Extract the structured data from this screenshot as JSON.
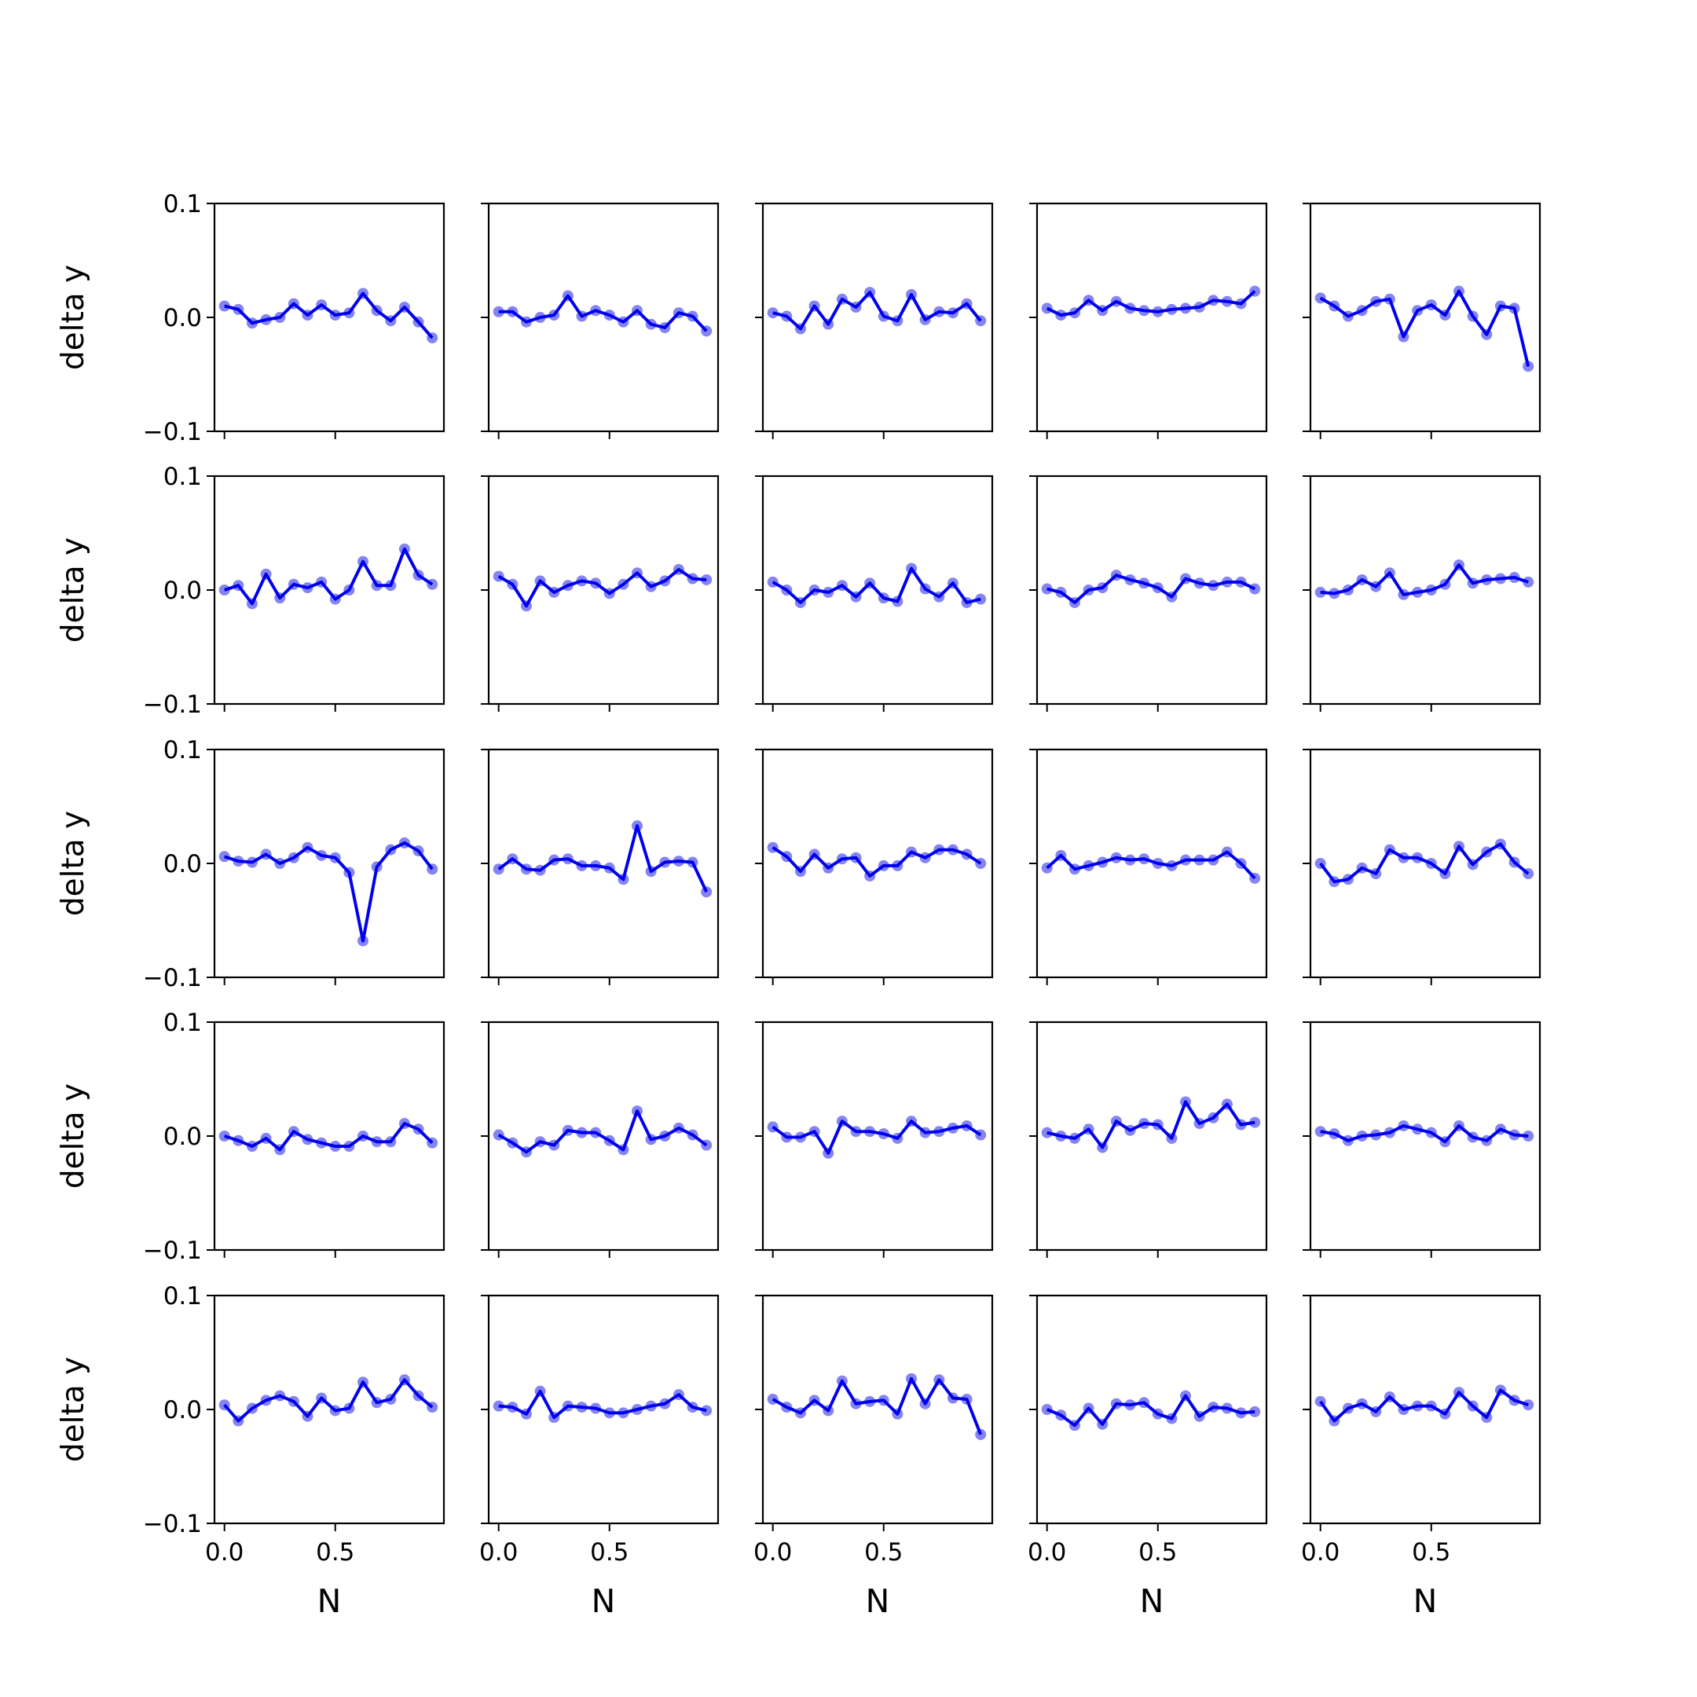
{
  "figure": {
    "rows": 5,
    "cols": 5,
    "ylabel": "delta y",
    "xlabel": "N",
    "ylim": [
      -0.1,
      0.1
    ],
    "xlim": [
      -0.045,
      0.99
    ],
    "yticks": [
      -0.1,
      0.0,
      0.1
    ],
    "ytick_labels": [
      "−0.1",
      "0.0",
      "0.1"
    ],
    "xticks": [
      0.0,
      0.5
    ],
    "xtick_labels": [
      "0.0",
      "0.5"
    ],
    "line_color": "#0000ee",
    "marker_color": "#6f6ff0"
  },
  "chart_data": [
    {
      "type": "line",
      "x": [
        0.0,
        0.0625,
        0.125,
        0.1875,
        0.25,
        0.3125,
        0.375,
        0.4375,
        0.5,
        0.5625,
        0.625,
        0.6875,
        0.75,
        0.8125,
        0.875,
        0.9375
      ],
      "series": [
        {
          "values": [
            0.01,
            0.007,
            -0.005,
            -0.002,
            0.0,
            0.012,
            0.002,
            0.011,
            0.002,
            0.004,
            0.021,
            0.006,
            -0.003,
            0.009,
            -0.004,
            -0.018
          ]
        }
      ]
    },
    {
      "type": "line",
      "x": [
        0.0,
        0.0625,
        0.125,
        0.1875,
        0.25,
        0.3125,
        0.375,
        0.4375,
        0.5,
        0.5625,
        0.625,
        0.6875,
        0.75,
        0.8125,
        0.875,
        0.9375
      ],
      "series": [
        {
          "values": [
            0.005,
            0.005,
            -0.004,
            0.0,
            0.002,
            0.019,
            0.001,
            0.006,
            0.002,
            -0.004,
            0.006,
            -0.006,
            -0.009,
            0.004,
            0.001,
            -0.012
          ]
        }
      ]
    },
    {
      "type": "line",
      "x": [
        0.0,
        0.0625,
        0.125,
        0.1875,
        0.25,
        0.3125,
        0.375,
        0.4375,
        0.5,
        0.5625,
        0.625,
        0.6875,
        0.75,
        0.8125,
        0.875,
        0.9375
      ],
      "series": [
        {
          "values": [
            0.004,
            0.001,
            -0.01,
            0.01,
            -0.006,
            0.016,
            0.009,
            0.022,
            0.001,
            -0.003,
            0.02,
            -0.002,
            0.005,
            0.004,
            0.012,
            -0.003
          ]
        }
      ]
    },
    {
      "type": "line",
      "x": [
        0.0,
        0.0625,
        0.125,
        0.1875,
        0.25,
        0.3125,
        0.375,
        0.4375,
        0.5,
        0.5625,
        0.625,
        0.6875,
        0.75,
        0.8125,
        0.875,
        0.9375
      ],
      "series": [
        {
          "values": [
            0.008,
            0.002,
            0.004,
            0.015,
            0.006,
            0.014,
            0.008,
            0.006,
            0.005,
            0.007,
            0.008,
            0.009,
            0.015,
            0.014,
            0.012,
            0.023
          ]
        }
      ]
    },
    {
      "type": "line",
      "x": [
        0.0,
        0.0625,
        0.125,
        0.1875,
        0.25,
        0.3125,
        0.375,
        0.4375,
        0.5,
        0.5625,
        0.625,
        0.6875,
        0.75,
        0.8125,
        0.875,
        0.9375
      ],
      "series": [
        {
          "values": [
            0.017,
            0.01,
            0.001,
            0.006,
            0.014,
            0.016,
            -0.017,
            0.006,
            0.011,
            0.002,
            0.023,
            0.001,
            -0.015,
            0.01,
            0.008,
            -0.043
          ]
        }
      ]
    },
    {
      "type": "line",
      "x": [
        0.0,
        0.0625,
        0.125,
        0.1875,
        0.25,
        0.3125,
        0.375,
        0.4375,
        0.5,
        0.5625,
        0.625,
        0.6875,
        0.75,
        0.8125,
        0.875,
        0.9375
      ],
      "series": [
        {
          "values": [
            0.0,
            0.004,
            -0.012,
            0.014,
            -0.007,
            0.005,
            0.002,
            0.007,
            -0.008,
            0.0,
            0.025,
            0.004,
            0.004,
            0.036,
            0.013,
            0.005
          ]
        }
      ]
    },
    {
      "type": "line",
      "x": [
        0.0,
        0.0625,
        0.125,
        0.1875,
        0.25,
        0.3125,
        0.375,
        0.4375,
        0.5,
        0.5625,
        0.625,
        0.6875,
        0.75,
        0.8125,
        0.875,
        0.9375
      ],
      "series": [
        {
          "values": [
            0.012,
            0.005,
            -0.014,
            0.008,
            -0.002,
            0.004,
            0.008,
            0.006,
            -0.003,
            0.005,
            0.015,
            0.003,
            0.008,
            0.018,
            0.01,
            0.009
          ]
        }
      ]
    },
    {
      "type": "line",
      "x": [
        0.0,
        0.0625,
        0.125,
        0.1875,
        0.25,
        0.3125,
        0.375,
        0.4375,
        0.5,
        0.5625,
        0.625,
        0.6875,
        0.75,
        0.8125,
        0.875,
        0.9375
      ],
      "series": [
        {
          "values": [
            0.007,
            0.0,
            -0.011,
            0.0,
            -0.002,
            0.004,
            -0.006,
            0.006,
            -0.007,
            -0.01,
            0.019,
            0.001,
            -0.006,
            0.006,
            -0.011,
            -0.008
          ]
        }
      ]
    },
    {
      "type": "line",
      "x": [
        0.0,
        0.0625,
        0.125,
        0.1875,
        0.25,
        0.3125,
        0.375,
        0.4375,
        0.5,
        0.5625,
        0.625,
        0.6875,
        0.75,
        0.8125,
        0.875,
        0.9375
      ],
      "series": [
        {
          "values": [
            0.001,
            -0.002,
            -0.011,
            0.0,
            0.002,
            0.013,
            0.009,
            0.006,
            0.002,
            -0.006,
            0.01,
            0.006,
            0.004,
            0.007,
            0.007,
            0.001
          ]
        }
      ]
    },
    {
      "type": "line",
      "x": [
        0.0,
        0.0625,
        0.125,
        0.1875,
        0.25,
        0.3125,
        0.375,
        0.4375,
        0.5,
        0.5625,
        0.625,
        0.6875,
        0.75,
        0.8125,
        0.875,
        0.9375
      ],
      "series": [
        {
          "values": [
            -0.002,
            -0.003,
            0.0,
            0.009,
            0.003,
            0.015,
            -0.004,
            -0.002,
            0.0,
            0.005,
            0.022,
            0.006,
            0.009,
            0.01,
            0.011,
            0.007
          ]
        }
      ]
    },
    {
      "type": "line",
      "x": [
        0.0,
        0.0625,
        0.125,
        0.1875,
        0.25,
        0.3125,
        0.375,
        0.4375,
        0.5,
        0.5625,
        0.625,
        0.6875,
        0.75,
        0.8125,
        0.875,
        0.9375
      ],
      "series": [
        {
          "values": [
            0.006,
            0.002,
            0.001,
            0.008,
            0.0,
            0.005,
            0.014,
            0.007,
            0.005,
            -0.008,
            -0.068,
            -0.003,
            0.012,
            0.018,
            0.011,
            -0.005
          ]
        }
      ]
    },
    {
      "type": "line",
      "x": [
        0.0,
        0.0625,
        0.125,
        0.1875,
        0.25,
        0.3125,
        0.375,
        0.4375,
        0.5,
        0.5625,
        0.625,
        0.6875,
        0.75,
        0.8125,
        0.875,
        0.9375
      ],
      "series": [
        {
          "values": [
            -0.005,
            0.004,
            -0.005,
            -0.006,
            0.003,
            0.004,
            -0.002,
            -0.002,
            -0.004,
            -0.014,
            0.033,
            -0.007,
            0.001,
            0.002,
            0.001,
            -0.025
          ]
        }
      ]
    },
    {
      "type": "line",
      "x": [
        0.0,
        0.0625,
        0.125,
        0.1875,
        0.25,
        0.3125,
        0.375,
        0.4375,
        0.5,
        0.5625,
        0.625,
        0.6875,
        0.75,
        0.8125,
        0.875,
        0.9375
      ],
      "series": [
        {
          "values": [
            0.014,
            0.006,
            -0.007,
            0.008,
            -0.004,
            0.004,
            0.005,
            -0.011,
            -0.002,
            -0.002,
            0.01,
            0.005,
            0.012,
            0.012,
            0.008,
            0.0
          ]
        }
      ]
    },
    {
      "type": "line",
      "x": [
        0.0,
        0.0625,
        0.125,
        0.1875,
        0.25,
        0.3125,
        0.375,
        0.4375,
        0.5,
        0.5625,
        0.625,
        0.6875,
        0.75,
        0.8125,
        0.875,
        0.9375
      ],
      "series": [
        {
          "values": [
            -0.004,
            0.007,
            -0.005,
            -0.002,
            0.001,
            0.005,
            0.003,
            0.004,
            0.0,
            -0.002,
            0.003,
            0.003,
            0.003,
            0.01,
            0.0,
            -0.013
          ]
        }
      ]
    },
    {
      "type": "line",
      "x": [
        0.0,
        0.0625,
        0.125,
        0.1875,
        0.25,
        0.3125,
        0.375,
        0.4375,
        0.5,
        0.5625,
        0.625,
        0.6875,
        0.75,
        0.8125,
        0.875,
        0.9375
      ],
      "series": [
        {
          "values": [
            0.0,
            -0.016,
            -0.014,
            -0.004,
            -0.009,
            0.012,
            0.005,
            0.005,
            0.0,
            -0.009,
            0.015,
            -0.001,
            0.01,
            0.017,
            0.001,
            -0.009
          ]
        }
      ]
    },
    {
      "type": "line",
      "x": [
        0.0,
        0.0625,
        0.125,
        0.1875,
        0.25,
        0.3125,
        0.375,
        0.4375,
        0.5,
        0.5625,
        0.625,
        0.6875,
        0.75,
        0.8125,
        0.875,
        0.9375
      ],
      "series": [
        {
          "values": [
            0.0,
            -0.004,
            -0.009,
            -0.002,
            -0.012,
            0.004,
            -0.003,
            -0.006,
            -0.009,
            -0.009,
            0.0,
            -0.005,
            -0.005,
            0.011,
            0.006,
            -0.006
          ]
        }
      ]
    },
    {
      "type": "line",
      "x": [
        0.0,
        0.0625,
        0.125,
        0.1875,
        0.25,
        0.3125,
        0.375,
        0.4375,
        0.5,
        0.5625,
        0.625,
        0.6875,
        0.75,
        0.8125,
        0.875,
        0.9375
      ],
      "series": [
        {
          "values": [
            0.001,
            -0.006,
            -0.014,
            -0.005,
            -0.008,
            0.005,
            0.003,
            0.003,
            -0.004,
            -0.012,
            0.022,
            -0.003,
            0.0,
            0.007,
            0.001,
            -0.008
          ]
        }
      ]
    },
    {
      "type": "line",
      "x": [
        0.0,
        0.0625,
        0.125,
        0.1875,
        0.25,
        0.3125,
        0.375,
        0.4375,
        0.5,
        0.5625,
        0.625,
        0.6875,
        0.75,
        0.8125,
        0.875,
        0.9375
      ],
      "series": [
        {
          "values": [
            0.008,
            -0.001,
            -0.001,
            0.004,
            -0.015,
            0.013,
            0.004,
            0.004,
            0.002,
            -0.002,
            0.013,
            0.003,
            0.004,
            0.007,
            0.009,
            0.001
          ]
        }
      ]
    },
    {
      "type": "line",
      "x": [
        0.0,
        0.0625,
        0.125,
        0.1875,
        0.25,
        0.3125,
        0.375,
        0.4375,
        0.5,
        0.5625,
        0.625,
        0.6875,
        0.75,
        0.8125,
        0.875,
        0.9375
      ],
      "series": [
        {
          "values": [
            0.003,
            0.0,
            -0.002,
            0.006,
            -0.01,
            0.013,
            0.005,
            0.011,
            0.01,
            -0.002,
            0.03,
            0.011,
            0.016,
            0.028,
            0.01,
            0.012
          ]
        }
      ]
    },
    {
      "type": "line",
      "x": [
        0.0,
        0.0625,
        0.125,
        0.1875,
        0.25,
        0.3125,
        0.375,
        0.4375,
        0.5,
        0.5625,
        0.625,
        0.6875,
        0.75,
        0.8125,
        0.875,
        0.9375
      ],
      "series": [
        {
          "values": [
            0.004,
            0.002,
            -0.004,
            0.0,
            0.001,
            0.003,
            0.009,
            0.006,
            0.003,
            -0.005,
            0.009,
            -0.001,
            -0.004,
            0.006,
            0.001,
            0.0
          ]
        }
      ]
    },
    {
      "type": "line",
      "x": [
        0.0,
        0.0625,
        0.125,
        0.1875,
        0.25,
        0.3125,
        0.375,
        0.4375,
        0.5,
        0.5625,
        0.625,
        0.6875,
        0.75,
        0.8125,
        0.875,
        0.9375
      ],
      "series": [
        {
          "values": [
            0.004,
            -0.01,
            0.001,
            0.008,
            0.012,
            0.007,
            -0.006,
            0.01,
            -0.001,
            0.001,
            0.024,
            0.006,
            0.009,
            0.026,
            0.012,
            0.002
          ]
        }
      ]
    },
    {
      "type": "line",
      "x": [
        0.0,
        0.0625,
        0.125,
        0.1875,
        0.25,
        0.3125,
        0.375,
        0.4375,
        0.5,
        0.5625,
        0.625,
        0.6875,
        0.75,
        0.8125,
        0.875,
        0.9375
      ],
      "series": [
        {
          "values": [
            0.003,
            0.002,
            -0.004,
            0.016,
            -0.007,
            0.003,
            0.002,
            0.001,
            -0.003,
            -0.003,
            0.0,
            0.003,
            0.005,
            0.013,
            0.002,
            -0.001
          ]
        }
      ]
    },
    {
      "type": "line",
      "x": [
        0.0,
        0.0625,
        0.125,
        0.1875,
        0.25,
        0.3125,
        0.375,
        0.4375,
        0.5,
        0.5625,
        0.625,
        0.6875,
        0.75,
        0.8125,
        0.875,
        0.9375
      ],
      "series": [
        {
          "values": [
            0.009,
            0.002,
            -0.003,
            0.008,
            -0.001,
            0.025,
            0.005,
            0.007,
            0.008,
            -0.004,
            0.027,
            0.005,
            0.026,
            0.01,
            0.009,
            -0.022
          ]
        }
      ]
    },
    {
      "type": "line",
      "x": [
        0.0,
        0.0625,
        0.125,
        0.1875,
        0.25,
        0.3125,
        0.375,
        0.4375,
        0.5,
        0.5625,
        0.625,
        0.6875,
        0.75,
        0.8125,
        0.875,
        0.9375
      ],
      "series": [
        {
          "values": [
            0.0,
            -0.005,
            -0.014,
            0.001,
            -0.013,
            0.005,
            0.004,
            0.006,
            -0.004,
            -0.008,
            0.012,
            -0.006,
            0.002,
            0.001,
            -0.003,
            -0.002
          ]
        }
      ]
    },
    {
      "type": "line",
      "x": [
        0.0,
        0.0625,
        0.125,
        0.1875,
        0.25,
        0.3125,
        0.375,
        0.4375,
        0.5,
        0.5625,
        0.625,
        0.6875,
        0.75,
        0.8125,
        0.875,
        0.9375
      ],
      "series": [
        {
          "values": [
            0.007,
            -0.01,
            0.001,
            0.005,
            -0.002,
            0.011,
            0.0,
            0.003,
            0.003,
            -0.004,
            0.015,
            0.003,
            -0.007,
            0.017,
            0.008,
            0.004
          ]
        }
      ]
    }
  ]
}
